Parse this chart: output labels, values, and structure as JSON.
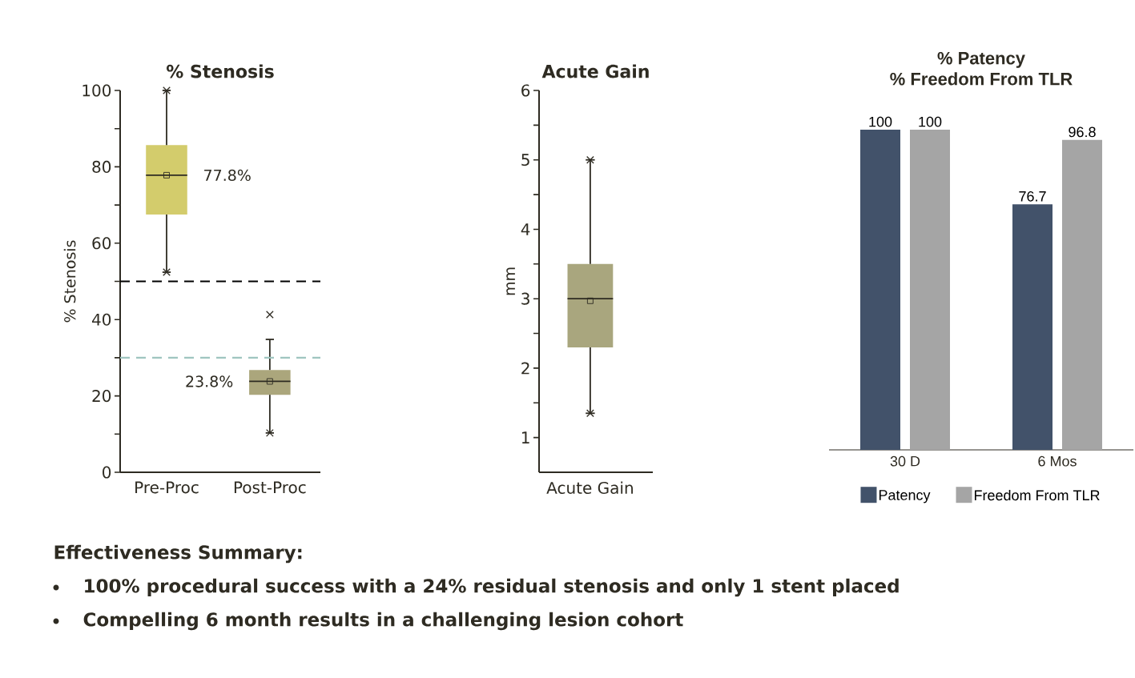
{
  "chart_data": [
    {
      "type": "box",
      "title": "% Stenosis",
      "ylabel": "% Stenosis",
      "categories": [
        "Pre-Proc",
        "Post-Proc"
      ],
      "colors": [
        "#d3cc6c",
        "#aba67c"
      ],
      "boxes": [
        {
          "low": 52.4,
          "q1": 67.5,
          "median": 77.8,
          "q3": 85.7,
          "high": 100,
          "mean": 77.8,
          "outliers": [
            52.4,
            100
          ]
        },
        {
          "low": 10.3,
          "q1": 20.3,
          "median": 23.8,
          "q3": 26.8,
          "high": 34.8,
          "mean": 23.8,
          "outliers": [
            10.3,
            41.3
          ]
        }
      ],
      "ylim": [
        0,
        100
      ],
      "yticks": [
        0,
        {
          "value": 10,
          "label": null
        },
        20,
        {
          "value": 30,
          "label": null
        },
        40,
        {
          "value": 50,
          "label": null
        },
        60,
        {
          "value": 70,
          "label": null
        },
        80,
        {
          "value": 90,
          "label": null
        },
        100
      ],
      "ref_lines": [
        {
          "axis": "y",
          "value": 50,
          "color": "#000000",
          "line_style": "dashed"
        },
        {
          "axis": "y",
          "value": 30,
          "color": "#9fc5c0",
          "line_style": "dashed"
        }
      ],
      "annotations": [
        {
          "text": "77.8%",
          "x": "Pre-Proc",
          "y": 77.8
        },
        {
          "text": "23.8%",
          "x": "Post-Proc",
          "y": 23.8
        },
        "Effectiveness Summary:",
        "100% procedural success with a 24% residual stenosis and only 1 stent placed",
        "Compelling 6 month results in a challenging lesion cohort"
      ]
    },
    {
      "type": "box",
      "title": "Acute Gain",
      "ylabel": "mm",
      "categories": [
        "Acute Gain"
      ],
      "colors": [
        "#a9a67e"
      ],
      "boxes": [
        {
          "low": 1.35,
          "q1": 2.3,
          "median": 3.0,
          "q3": 3.5,
          "high": 5.0,
          "mean": 2.97,
          "outliers": [
            1.35,
            5.0
          ]
        }
      ],
      "ylim": [
        0.5,
        6
      ],
      "yticks": [
        1,
        {
          "value": 1.5,
          "label": null
        },
        2,
        {
          "value": 2.5,
          "label": null
        },
        3,
        {
          "value": 3.5,
          "label": null
        },
        4,
        {
          "value": 4.5,
          "label": null
        },
        5,
        {
          "value": 5.5,
          "label": null
        },
        6
      ]
    },
    {
      "type": "bar",
      "title": "% Patency",
      "subtitle": "% Freedom From TLR",
      "categories": [
        "30 D",
        "6 Mos"
      ],
      "series": [
        {
          "name": "Patency",
          "color": "#42526a",
          "values": [
            100,
            76.7
          ]
        },
        {
          "name": "Freedom From TLR",
          "color": "#a5a5a5",
          "values": [
            100,
            96.8
          ]
        }
      ],
      "data_labels": true,
      "legend": "bottom"
    }
  ]
}
